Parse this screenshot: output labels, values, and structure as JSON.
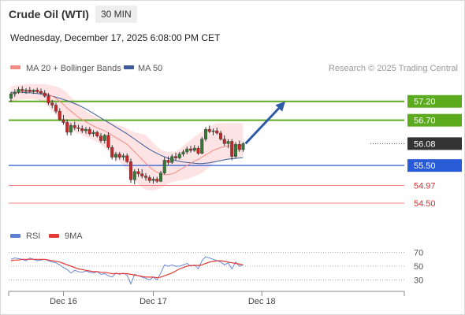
{
  "header": {
    "instrument": "Crude Oil (WTI)",
    "timeframe": "30 MIN",
    "datetime": "Wednesday, December 17, 2025 6:08:00 PM CET"
  },
  "legend": {
    "ma20": {
      "label": "MA 20 + Bollinger Bands",
      "color": "#f28b82"
    },
    "ma50": {
      "label": "MA 50",
      "color": "#3b5b9a"
    },
    "credit": "Research © 2025 Trading Central"
  },
  "rsi_legend": {
    "rsi": {
      "label": "RSI",
      "color": "#5b7fd6"
    },
    "ma9": {
      "label": "9MA",
      "color": "#e53935"
    }
  },
  "colors": {
    "up": "#2e7d32",
    "down": "#c62828",
    "resistance": "#5cab1e",
    "pivot": "#2a5bd7",
    "support": "#f08080",
    "band_fill": "#fde3e3",
    "arrow": "#2e5aa8",
    "price_tag": "#333333"
  },
  "chart_data": [
    {
      "type": "candlestick",
      "title": "Crude Oil (WTI)",
      "x_ticks": [
        "Dec 16",
        "Dec 17",
        "Dec 18"
      ],
      "x_tick_positions": [
        14,
        38,
        67
      ],
      "ylim": [
        54.0,
        57.8
      ],
      "levels": [
        {
          "value": 57.2,
          "label": "57.20",
          "kind": "resistance"
        },
        {
          "value": 56.7,
          "label": "56.70",
          "kind": "resistance"
        },
        {
          "value": 56.08,
          "label": "56.08",
          "kind": "last"
        },
        {
          "value": 55.5,
          "label": "55.50",
          "kind": "pivot"
        },
        {
          "value": 54.97,
          "label": "54.97",
          "kind": "support"
        },
        {
          "value": 54.5,
          "label": "54.50",
          "kind": "support"
        }
      ],
      "candles": [
        {
          "o": 57.28,
          "h": 57.45,
          "l": 57.18,
          "c": 57.4
        },
        {
          "o": 57.4,
          "h": 57.52,
          "l": 57.32,
          "c": 57.44
        },
        {
          "o": 57.44,
          "h": 57.58,
          "l": 57.4,
          "c": 57.52
        },
        {
          "o": 57.52,
          "h": 57.6,
          "l": 57.42,
          "c": 57.48
        },
        {
          "o": 57.48,
          "h": 57.55,
          "l": 57.4,
          "c": 57.5
        },
        {
          "o": 57.5,
          "h": 57.58,
          "l": 57.44,
          "c": 57.46
        },
        {
          "o": 57.46,
          "h": 57.52,
          "l": 57.4,
          "c": 57.5
        },
        {
          "o": 57.5,
          "h": 57.56,
          "l": 57.42,
          "c": 57.46
        },
        {
          "o": 57.46,
          "h": 57.54,
          "l": 57.38,
          "c": 57.42
        },
        {
          "o": 57.42,
          "h": 57.5,
          "l": 57.3,
          "c": 57.34
        },
        {
          "o": 57.34,
          "h": 57.42,
          "l": 57.1,
          "c": 57.16
        },
        {
          "o": 57.16,
          "h": 57.24,
          "l": 57.02,
          "c": 57.1
        },
        {
          "o": 57.1,
          "h": 57.16,
          "l": 56.88,
          "c": 56.94
        },
        {
          "o": 56.94,
          "h": 57.02,
          "l": 56.68,
          "c": 56.72
        },
        {
          "o": 56.72,
          "h": 56.84,
          "l": 56.58,
          "c": 56.64
        },
        {
          "o": 56.64,
          "h": 56.72,
          "l": 56.3,
          "c": 56.38
        },
        {
          "o": 56.38,
          "h": 56.62,
          "l": 56.3,
          "c": 56.56
        },
        {
          "o": 56.56,
          "h": 56.66,
          "l": 56.44,
          "c": 56.5
        },
        {
          "o": 56.5,
          "h": 56.58,
          "l": 56.4,
          "c": 56.48
        },
        {
          "o": 56.48,
          "h": 56.56,
          "l": 56.36,
          "c": 56.42
        },
        {
          "o": 56.42,
          "h": 56.52,
          "l": 56.34,
          "c": 56.46
        },
        {
          "o": 56.46,
          "h": 56.52,
          "l": 56.3,
          "c": 56.34
        },
        {
          "o": 56.34,
          "h": 56.44,
          "l": 56.26,
          "c": 56.38
        },
        {
          "o": 56.38,
          "h": 56.42,
          "l": 56.24,
          "c": 56.28
        },
        {
          "o": 56.28,
          "h": 56.36,
          "l": 56.1,
          "c": 56.16
        },
        {
          "o": 56.16,
          "h": 56.34,
          "l": 56.08,
          "c": 56.3
        },
        {
          "o": 56.3,
          "h": 56.38,
          "l": 55.92,
          "c": 55.98
        },
        {
          "o": 55.98,
          "h": 56.04,
          "l": 55.66,
          "c": 55.72
        },
        {
          "o": 55.72,
          "h": 55.86,
          "l": 55.62,
          "c": 55.8
        },
        {
          "o": 55.8,
          "h": 55.86,
          "l": 55.66,
          "c": 55.72
        },
        {
          "o": 55.72,
          "h": 55.82,
          "l": 55.64,
          "c": 55.76
        },
        {
          "o": 55.76,
          "h": 55.82,
          "l": 55.56,
          "c": 55.6
        },
        {
          "o": 55.6,
          "h": 55.68,
          "l": 55.04,
          "c": 55.12
        },
        {
          "o": 55.12,
          "h": 55.4,
          "l": 55.0,
          "c": 55.34
        },
        {
          "o": 55.34,
          "h": 55.42,
          "l": 55.2,
          "c": 55.28
        },
        {
          "o": 55.28,
          "h": 55.4,
          "l": 55.16,
          "c": 55.22
        },
        {
          "o": 55.22,
          "h": 55.3,
          "l": 55.1,
          "c": 55.18
        },
        {
          "o": 55.18,
          "h": 55.24,
          "l": 55.04,
          "c": 55.1
        },
        {
          "o": 55.1,
          "h": 55.2,
          "l": 55.02,
          "c": 55.14
        },
        {
          "o": 55.14,
          "h": 55.2,
          "l": 55.04,
          "c": 55.08
        },
        {
          "o": 55.08,
          "h": 55.36,
          "l": 55.06,
          "c": 55.3
        },
        {
          "o": 55.3,
          "h": 55.72,
          "l": 55.26,
          "c": 55.64
        },
        {
          "o": 55.64,
          "h": 55.74,
          "l": 55.52,
          "c": 55.58
        },
        {
          "o": 55.58,
          "h": 55.8,
          "l": 55.54,
          "c": 55.74
        },
        {
          "o": 55.74,
          "h": 55.84,
          "l": 55.64,
          "c": 55.7
        },
        {
          "o": 55.7,
          "h": 55.86,
          "l": 55.66,
          "c": 55.8
        },
        {
          "o": 55.8,
          "h": 55.92,
          "l": 55.74,
          "c": 55.86
        },
        {
          "o": 55.86,
          "h": 56.0,
          "l": 55.8,
          "c": 55.94
        },
        {
          "o": 55.94,
          "h": 56.02,
          "l": 55.84,
          "c": 55.9
        },
        {
          "o": 55.9,
          "h": 56.04,
          "l": 55.86,
          "c": 55.96
        },
        {
          "o": 55.96,
          "h": 56.02,
          "l": 55.78,
          "c": 55.82
        },
        {
          "o": 55.82,
          "h": 56.26,
          "l": 55.8,
          "c": 56.2
        },
        {
          "o": 56.2,
          "h": 56.52,
          "l": 56.14,
          "c": 56.46
        },
        {
          "o": 56.46,
          "h": 56.56,
          "l": 56.36,
          "c": 56.4
        },
        {
          "o": 56.4,
          "h": 56.48,
          "l": 56.3,
          "c": 56.42
        },
        {
          "o": 56.42,
          "h": 56.5,
          "l": 56.32,
          "c": 56.36
        },
        {
          "o": 56.36,
          "h": 56.42,
          "l": 56.16,
          "c": 56.2
        },
        {
          "o": 56.2,
          "h": 56.3,
          "l": 56.02,
          "c": 56.08
        },
        {
          "o": 56.08,
          "h": 56.2,
          "l": 55.96,
          "c": 56.14
        },
        {
          "o": 56.14,
          "h": 56.2,
          "l": 55.64,
          "c": 55.74
        },
        {
          "o": 55.74,
          "h": 56.12,
          "l": 55.7,
          "c": 56.06
        },
        {
          "o": 56.06,
          "h": 56.16,
          "l": 55.86,
          "c": 55.92
        },
        {
          "o": 55.92,
          "h": 56.12,
          "l": 55.86,
          "c": 56.08
        }
      ],
      "ma20": [
        57.4,
        57.42,
        57.44,
        57.45,
        57.46,
        57.46,
        57.46,
        57.45,
        57.44,
        57.42,
        57.38,
        57.34,
        57.28,
        57.2,
        57.12,
        57.02,
        56.94,
        56.86,
        56.78,
        56.72,
        56.66,
        56.6,
        56.55,
        56.5,
        56.46,
        56.42,
        56.36,
        56.3,
        56.24,
        56.18,
        56.12,
        56.06,
        55.96,
        55.86,
        55.76,
        55.66,
        55.56,
        55.46,
        55.38,
        55.32,
        55.28,
        55.26,
        55.26,
        55.28,
        55.32,
        55.38,
        55.44,
        55.5,
        55.56,
        55.62,
        55.66,
        55.72,
        55.78,
        55.84,
        55.9,
        55.94,
        55.98,
        56.0,
        56.02,
        56.02,
        56.02,
        56.03,
        56.04
      ],
      "bb_upper": [
        57.6,
        57.62,
        57.64,
        57.65,
        57.66,
        57.66,
        57.66,
        57.66,
        57.66,
        57.66,
        57.64,
        57.62,
        57.6,
        57.56,
        57.5,
        57.42,
        57.32,
        57.22,
        57.12,
        57.02,
        56.94,
        56.88,
        56.82,
        56.78,
        56.74,
        56.7,
        56.68,
        56.64,
        56.6,
        56.56,
        56.52,
        56.48,
        56.42,
        56.38,
        56.36,
        56.34,
        56.3,
        56.2,
        56.1,
        56.0,
        55.92,
        55.88,
        55.86,
        55.86,
        55.88,
        55.94,
        56.02,
        56.1,
        56.18,
        56.26,
        56.34,
        56.4,
        56.46,
        56.52,
        56.58,
        56.62,
        56.62,
        56.62,
        56.62,
        56.62,
        56.62,
        56.62,
        56.62
      ],
      "bb_lower": [
        57.2,
        57.22,
        57.24,
        57.25,
        57.26,
        57.26,
        57.26,
        57.24,
        57.2,
        57.14,
        57.04,
        56.94,
        56.84,
        56.74,
        56.62,
        56.52,
        56.44,
        56.38,
        56.34,
        56.3,
        56.26,
        56.22,
        56.18,
        56.12,
        56.06,
        55.98,
        55.88,
        55.78,
        55.68,
        55.6,
        55.5,
        55.4,
        55.26,
        55.12,
        55.0,
        54.92,
        54.86,
        54.84,
        54.84,
        54.86,
        54.9,
        54.96,
        55.02,
        55.06,
        55.08,
        55.1,
        55.12,
        55.14,
        55.18,
        55.22,
        55.26,
        55.3,
        55.38,
        55.46,
        55.54,
        55.6,
        55.62,
        55.64,
        55.66,
        55.68,
        55.7,
        55.72,
        55.74
      ],
      "ma50": [
        57.44,
        57.44,
        57.44,
        57.44,
        57.43,
        57.43,
        57.42,
        57.41,
        57.4,
        57.38,
        57.36,
        57.34,
        57.31,
        57.28,
        57.25,
        57.22,
        57.18,
        57.14,
        57.1,
        57.05,
        57.0,
        56.94,
        56.88,
        56.82,
        56.76,
        56.7,
        56.64,
        56.58,
        56.52,
        56.46,
        56.4,
        56.34,
        56.27,
        56.2,
        56.13,
        56.06,
        55.99,
        55.93,
        55.87,
        55.82,
        55.77,
        55.73,
        55.69,
        55.66,
        55.63,
        55.61,
        55.59,
        55.58,
        55.57,
        55.56,
        55.55,
        55.55,
        55.56,
        55.57,
        55.59,
        55.61,
        55.63,
        55.65,
        55.67,
        55.68,
        55.69,
        55.7,
        55.71
      ],
      "forecast_arrow": {
        "from": {
          "i": 62,
          "v": 56.08
        },
        "to": {
          "i": 72,
          "v": 57.2
        }
      }
    },
    {
      "type": "line",
      "title": "RSI",
      "ylim": [
        20,
        80
      ],
      "y_ticks": [
        70,
        50,
        30
      ],
      "series": [
        {
          "name": "RSI",
          "values": [
            60,
            62,
            61,
            60,
            58,
            62,
            60,
            58,
            59,
            60,
            58,
            56,
            55,
            52,
            48,
            45,
            40,
            44,
            42,
            41,
            43,
            41,
            40,
            42,
            38,
            39,
            36,
            34,
            40,
            38,
            40,
            37,
            24,
            38,
            36,
            34,
            32,
            30,
            34,
            30,
            40,
            52,
            50,
            52,
            50,
            50,
            52,
            54,
            50,
            52,
            46,
            58,
            64,
            62,
            60,
            58,
            56,
            52,
            55,
            46,
            56,
            50,
            52
          ]
        },
        {
          "name": "9MA",
          "values": [
            58,
            59,
            59,
            60,
            60,
            60,
            60,
            60,
            60,
            60,
            59,
            58,
            57,
            56,
            54,
            52,
            50,
            48,
            46,
            45,
            44,
            43,
            42,
            42,
            41,
            41,
            40,
            39,
            39,
            39,
            39,
            39,
            38,
            37,
            36,
            35,
            34,
            34,
            34,
            33,
            34,
            36,
            38,
            40,
            43,
            46,
            48,
            50,
            51,
            51,
            51,
            52,
            54,
            56,
            57,
            58,
            58,
            57,
            56,
            55,
            54,
            53,
            52
          ]
        }
      ]
    }
  ]
}
